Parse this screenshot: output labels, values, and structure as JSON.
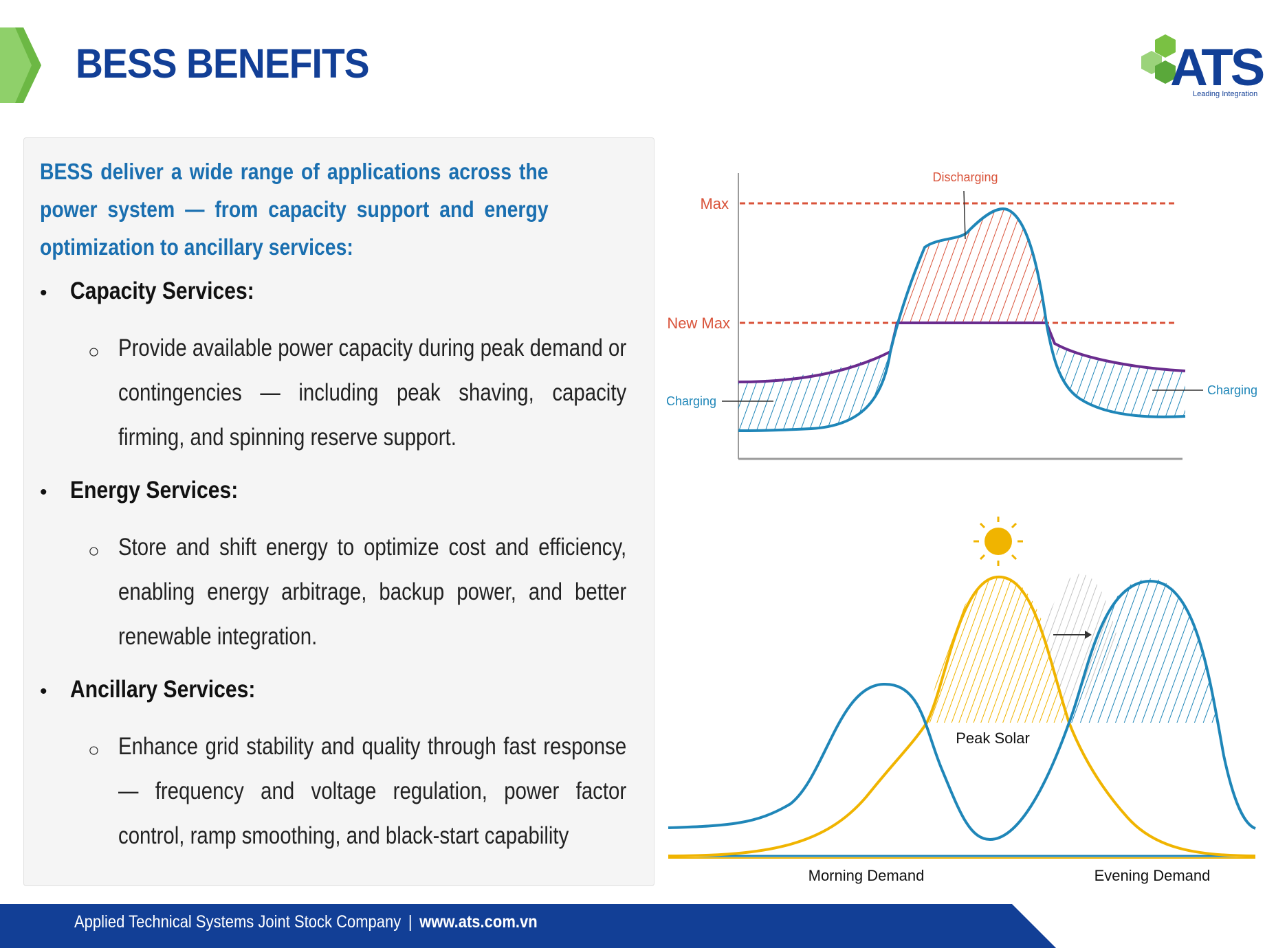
{
  "header": {
    "title": "BESS BENEFITS",
    "logo_text": "ATS",
    "logo_tagline": "Leading Integration"
  },
  "content": {
    "intro": "BESS deliver a wide range of applications across the power system — from capacity support and energy optimization to ancillary services:",
    "sections": [
      {
        "heading": "Capacity Services:",
        "text": "Provide available power capacity during peak demand or contingencies — including peak shaving, capacity firming, and spinning reserve support."
      },
      {
        "heading": "Energy Services:",
        "text": "Store and shift energy to optimize cost and efficiency, enabling energy arbitrage, backup power, and better renewable integration."
      },
      {
        "heading": "Ancillary Services:",
        "text": "Enhance grid stability and quality through fast response — frequency and voltage regulation, power factor control, ramp smoothing, and black-start capability"
      }
    ]
  },
  "peak_shaving_diagram": {
    "label_max": "Max",
    "label_new_max": "New Max",
    "label_discharging": "Discharging",
    "label_charging_left": "Charging",
    "label_charging_right": "Charging"
  },
  "solar_diagram": {
    "label_peak_solar": "Peak Solar",
    "label_morning": "Morning Demand",
    "label_evening": "Evening Demand"
  },
  "footer": {
    "company": "Applied Technical Systems Joint Stock Company",
    "separator": "|",
    "url": "www.ats.com.vn"
  },
  "colors": {
    "title_blue": "#123f96",
    "accent_green": "#7ac143",
    "curve_blue": "#1f86b8",
    "max_red": "#d9533a",
    "new_max_purple": "#6a2c8e",
    "solar_yellow": "#f0b400",
    "footer_navy": "#123f96"
  }
}
